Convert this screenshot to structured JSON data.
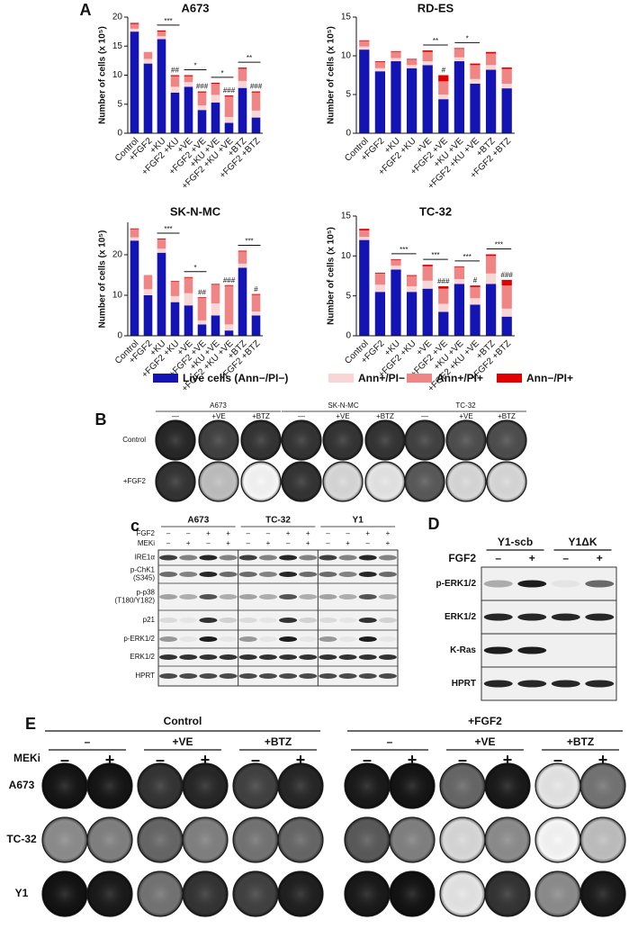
{
  "panel_labels": [
    "A",
    "B",
    "c",
    "D",
    "E"
  ],
  "legend": [
    {
      "name": "Live cells (Ann−/PI−)",
      "color": "#1414b4"
    },
    {
      "name": "Ann+/PI−",
      "color": "#f9d6d6"
    },
    {
      "name": "Ann+/PI+",
      "color": "#f08585"
    },
    {
      "name": "Ann−/PI+",
      "color": "#e00000"
    }
  ],
  "chart_data": [
    {
      "type": "bar",
      "stacked": true,
      "title": "A673",
      "y_label": "Number of cells (x 10⁵)",
      "categories": [
        "Control",
        "+FGF2",
        "+KU",
        "+FGF2 +KU",
        "+VE",
        "+FGF2 +VE",
        "+KU +VE",
        "+FGF2 +KU +VE",
        "+BTZ",
        "+FGF2 +BTZ"
      ],
      "series": [
        {
          "values": [
            17.5,
            12,
            16.2,
            7,
            8,
            4,
            5.3,
            1.8,
            7.8,
            2.7
          ]
        },
        {
          "values": [
            0.5,
            0.8,
            0.5,
            1,
            0.8,
            0.8,
            1.3,
            1,
            1.2,
            1.2
          ]
        },
        {
          "values": [
            0.8,
            1.2,
            0.8,
            1.8,
            1,
            2.2,
            1.9,
            3.5,
            2.1,
            3.1
          ]
        },
        {
          "values": [
            0.2,
            0,
            0.2,
            0.2,
            0.2,
            0.2,
            0.2,
            0.2,
            0.2,
            0.2
          ]
        }
      ],
      "ylim": [
        0,
        20
      ],
      "yticks": [
        0,
        5,
        10,
        15,
        20
      ],
      "annotations": [
        {
          "label": "***",
          "categories": [
            "+KU",
            "+FGF2 +KU"
          ]
        },
        {
          "label": "##",
          "categories": [
            "+FGF2 +KU"
          ]
        },
        {
          "label": "*",
          "categories": [
            "+VE",
            "+FGF2 +VE"
          ]
        },
        {
          "label": "###",
          "categories": [
            "+FGF2 +VE"
          ]
        },
        {
          "label": "*",
          "categories": [
            "+KU +VE",
            "+FGF2 +KU +VE"
          ]
        },
        {
          "label": "###",
          "categories": [
            "+FGF2 +KU +VE"
          ]
        },
        {
          "label": "**",
          "categories": [
            "+BTZ",
            "+FGF2 +BTZ"
          ]
        },
        {
          "label": "###",
          "categories": [
            "+FGF2 +BTZ"
          ]
        }
      ]
    },
    {
      "type": "bar",
      "stacked": true,
      "title": "RD-ES",
      "y_label": "Number of cells (x 10⁵)",
      "categories": [
        "Control",
        "+FGF2",
        "+KU",
        "+FGF2 +KU",
        "+VE",
        "+FGF2 +VE",
        "+KU +VE",
        "+FGF2 +KU +VE",
        "+BTZ",
        "+FGF2 +BTZ"
      ],
      "series": [
        {
          "values": [
            10.8,
            8,
            9.3,
            8.4,
            8.8,
            4.4,
            9.3,
            6.4,
            8.2,
            5.8
          ]
        },
        {
          "values": [
            0.4,
            0.4,
            0.4,
            0.4,
            0.5,
            0.6,
            0.5,
            0.6,
            0.6,
            0.6
          ]
        },
        {
          "values": [
            0.7,
            0.8,
            0.8,
            0.7,
            1.2,
            1.7,
            1.1,
            1.8,
            1.5,
            1.9
          ]
        },
        {
          "values": [
            0.1,
            0.1,
            0.1,
            0.1,
            0.2,
            0.8,
            0.1,
            0.2,
            0.2,
            0.2
          ]
        }
      ],
      "ylim": [
        0,
        15
      ],
      "yticks": [
        0,
        5,
        10,
        15
      ],
      "annotations": [
        {
          "label": "**",
          "categories": [
            "+VE",
            "+FGF2 +VE"
          ]
        },
        {
          "label": "#",
          "categories": [
            "+FGF2 +VE"
          ]
        },
        {
          "label": "*",
          "categories": [
            "+KU +VE",
            "+FGF2 +KU +VE"
          ]
        }
      ]
    },
    {
      "type": "bar",
      "stacked": true,
      "title": "SK-N-MC",
      "y_label": "Number of cells (x 10⁵)",
      "categories": [
        "Control",
        "+FGF2",
        "+KU",
        "+FGF2 +KU",
        "+VE",
        "+FGF2 +VE",
        "+KU +VE",
        "+FGF2 +KU +VE",
        "+BTZ",
        "+FGF2 +BTZ"
      ],
      "series": [
        {
          "values": [
            23.5,
            10,
            20.5,
            8.3,
            7.5,
            2.8,
            5,
            1.3,
            16.8,
            5
          ]
        },
        {
          "values": [
            0.8,
            1.5,
            1,
            1.5,
            3,
            1,
            3,
            1.5,
            1,
            1
          ]
        },
        {
          "values": [
            2,
            3.5,
            2.3,
            3.5,
            3.8,
            5.5,
            4.6,
            9.5,
            3,
            4.1
          ]
        },
        {
          "values": [
            0.2,
            0,
            0.2,
            0.2,
            0.2,
            0.2,
            0.2,
            0.2,
            0.2,
            0.2
          ]
        }
      ],
      "ylim": [
        0,
        28
      ],
      "yticks": [
        0,
        10,
        20
      ],
      "annotations": [
        {
          "label": "***",
          "categories": [
            "+KU",
            "+FGF2 +KU"
          ]
        },
        {
          "label": "*",
          "categories": [
            "+VE",
            "+FGF2 +VE"
          ]
        },
        {
          "label": "##",
          "categories": [
            "+FGF2 +VE"
          ]
        },
        {
          "label": "###",
          "categories": [
            "+FGF2 +KU +VE"
          ]
        },
        {
          "label": "***",
          "categories": [
            "+BTZ",
            "+FGF2 +BTZ"
          ]
        },
        {
          "label": "#",
          "categories": [
            "+FGF2 +BTZ"
          ]
        }
      ]
    },
    {
      "type": "bar",
      "stacked": true,
      "title": "TC-32",
      "y_label": "Number of cells (x 10⁵)",
      "categories": [
        "Control",
        "+FGF2",
        "+KU",
        "+FGF2 +KU",
        "+VE",
        "+FGF2 +VE",
        "+KU +VE",
        "+FGF2 +KU +VE",
        "+BTZ",
        "+FGF2 +BTZ"
      ],
      "series": [
        {
          "values": [
            12,
            5.5,
            8.3,
            5.5,
            5.9,
            3,
            6.5,
            3.9,
            6.5,
            2.4
          ]
        },
        {
          "values": [
            0.4,
            0.9,
            0.5,
            0.7,
            1,
            1,
            0.6,
            0.8,
            1.3,
            1
          ]
        },
        {
          "values": [
            0.8,
            1.4,
            0.7,
            1.3,
            1.8,
            1.9,
            1.5,
            1.4,
            2.2,
            2.9
          ]
        },
        {
          "values": [
            0.2,
            0.1,
            0.1,
            0.1,
            0.2,
            0.3,
            0.1,
            0.2,
            0.2,
            0.7
          ]
        }
      ],
      "ylim": [
        0,
        15
      ],
      "yticks": [
        0,
        5,
        10,
        15
      ],
      "annotations": [
        {
          "label": "***",
          "categories": [
            "+KU",
            "+FGF2 +KU"
          ]
        },
        {
          "label": "***",
          "categories": [
            "+VE",
            "+FGF2 +VE"
          ]
        },
        {
          "label": "###",
          "categories": [
            "+FGF2 +VE"
          ]
        },
        {
          "label": "***",
          "categories": [
            "+KU +VE",
            "+FGF2 +KU +VE"
          ]
        },
        {
          "label": "#",
          "categories": [
            "+FGF2 +KU +VE"
          ]
        },
        {
          "label": "***",
          "categories": [
            "+BTZ",
            "+FGF2 +BTZ"
          ]
        },
        {
          "label": "###",
          "categories": [
            "+FGF2 +BTZ"
          ]
        }
      ]
    }
  ],
  "panel_b": {
    "groups": [
      {
        "title": "A673",
        "columns": [
          "—",
          "+VE",
          "+BTZ"
        ]
      },
      {
        "title": "SK-N-MC",
        "columns": [
          "—",
          "+VE",
          "+BTZ"
        ]
      },
      {
        "title": "TC-32",
        "columns": [
          "—",
          "+VE",
          "+BTZ"
        ]
      }
    ],
    "rows": [
      "Control",
      "+FGF2"
    ]
  },
  "panel_c": {
    "groups": [
      "A673",
      "TC-32",
      "Y1"
    ],
    "treatments": [
      {
        "label": "FGF2",
        "signs": [
          "–",
          "–",
          "+",
          "+",
          "–",
          "–",
          "+",
          "+",
          "–",
          "–",
          "+",
          "+"
        ]
      },
      {
        "label": "MEKi",
        "signs": [
          "–",
          "+",
          "–",
          "+",
          "–",
          "+",
          "–",
          "+",
          "–",
          "+",
          "–",
          "+"
        ]
      }
    ],
    "rows": [
      [
        "IRE1α"
      ],
      [
        "p-ChK1",
        "(S345)"
      ],
      [
        "p-p38",
        "(T180/Y182)"
      ],
      [
        "p21"
      ],
      [
        "p-ERK1/2"
      ],
      [
        "ERK1/2"
      ],
      [
        "HPRT"
      ]
    ]
  },
  "panel_d": {
    "groups": [
      "Y1-scb",
      "Y1ΔK"
    ],
    "treatment": {
      "label": "FGF2",
      "signs": [
        "–",
        "+",
        "–",
        "+"
      ]
    },
    "rows": [
      "p-ERK1/2",
      "ERK1/2",
      "K-Ras",
      "HPRT"
    ]
  },
  "panel_e": {
    "conditions": [
      {
        "title": "Control",
        "groups": [
          "–",
          "+VE",
          "+BTZ"
        ]
      },
      {
        "title": "+FGF2",
        "groups": [
          "–",
          "+VE",
          "+BTZ"
        ]
      }
    ],
    "treatment": {
      "label": "MEKi",
      "signs": [
        "–",
        "+",
        "–",
        "+",
        "–",
        "+",
        "–",
        "+",
        "–",
        "+",
        "–",
        "+"
      ]
    },
    "rows": [
      "A673",
      "TC-32",
      "Y1"
    ]
  }
}
